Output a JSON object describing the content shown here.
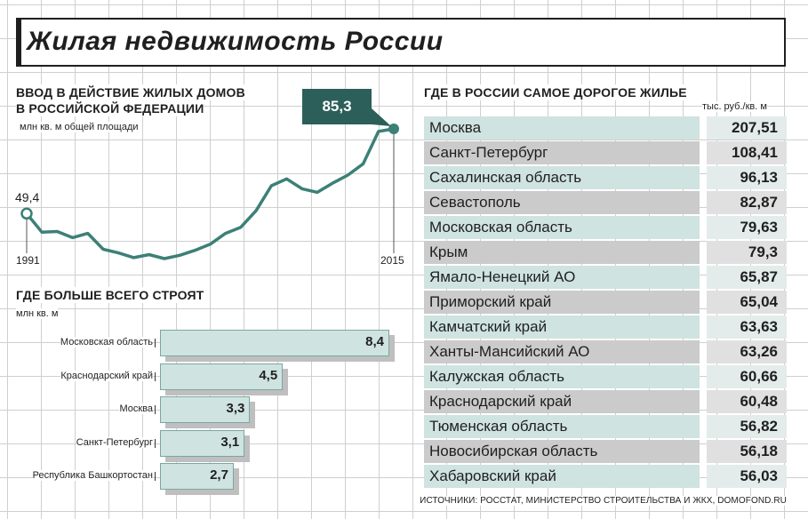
{
  "title": "Жилая недвижимость России",
  "sources": "ИСТОЧНИКИ: РОССТАТ, МИНИСТЕРСТВО СТРОИТЕЛЬСТВА И ЖКХ, DOMOFOND.RU",
  "colors": {
    "teal_dark": "#2c5f5a",
    "teal_line": "#3c8078",
    "teal_light": "#cfe3e0",
    "grey": "#cbcbcb"
  },
  "chart_data": [
    {
      "type": "line",
      "title": "ВВОД В ДЕЙСТВИЕ ЖИЛЫХ ДОМОВ В РОССИЙСКОЙ ФЕДЕРАЦИИ",
      "title_line1": "ВВОД В ДЕЙСТВИЕ ЖИЛЫХ ДОМОВ",
      "title_line2": "В РОССИЙСКОЙ ФЕДЕРАЦИИ",
      "ylabel": "млн кв. м общей площади",
      "x_start_label": "1991",
      "x_end_label": "2015",
      "first_label": "49,4",
      "last_label": "85,3",
      "x": [
        1991,
        1992,
        1993,
        1994,
        1995,
        1996,
        1997,
        1998,
        1999,
        2000,
        2001,
        2002,
        2003,
        2004,
        2005,
        2006,
        2007,
        2008,
        2009,
        2010,
        2011,
        2012,
        2013,
        2014,
        2015
      ],
      "values": [
        49.4,
        41.5,
        41.8,
        39.2,
        41.0,
        34.3,
        32.7,
        30.7,
        32.0,
        30.3,
        31.7,
        33.8,
        36.4,
        41.0,
        43.6,
        50.6,
        61.2,
        64.1,
        59.9,
        58.4,
        62.3,
        65.7,
        70.5,
        84.2,
        85.3
      ],
      "ylim": [
        20,
        90
      ]
    },
    {
      "type": "bar",
      "title": "ГДЕ БОЛЬШЕ ВСЕГО СТРОЯТ",
      "ylabel": "млн кв. м",
      "categories": [
        "Московская область",
        "Краснодарский край",
        "Москва",
        "Санкт-Петербург",
        "Республика Башкортостан"
      ],
      "values": [
        8.4,
        4.5,
        3.3,
        3.1,
        2.7
      ],
      "labels": [
        "8,4",
        "4,5",
        "3,3",
        "3,1",
        "2,7"
      ]
    },
    {
      "type": "table",
      "title": "ГДЕ В РОССИИ САМОЕ ДОРОГОЕ ЖИЛЬЕ",
      "unit": "тыс. руб./кв. м",
      "rows": [
        {
          "name": "Москва",
          "value": "207,51"
        },
        {
          "name": "Санкт-Петербург",
          "value": "108,41"
        },
        {
          "name": "Сахалинская область",
          "value": "96,13"
        },
        {
          "name": "Севастополь",
          "value": "82,87"
        },
        {
          "name": "Московская область",
          "value": "79,63"
        },
        {
          "name": "Крым",
          "value": "79,3"
        },
        {
          "name": "Ямало-Ненецкий АО",
          "value": "65,87"
        },
        {
          "name": "Приморский край",
          "value": "65,04"
        },
        {
          "name": "Камчатский край",
          "value": "63,63"
        },
        {
          "name": "Ханты-Мансийский АО",
          "value": "63,26"
        },
        {
          "name": "Калужская область",
          "value": "60,66"
        },
        {
          "name": "Краснодарский край",
          "value": "60,48"
        },
        {
          "name": "Тюменская область",
          "value": "56,82"
        },
        {
          "name": "Новосибирская область",
          "value": "56,18"
        },
        {
          "name": "Хабаровский край",
          "value": "56,03"
        }
      ]
    }
  ]
}
